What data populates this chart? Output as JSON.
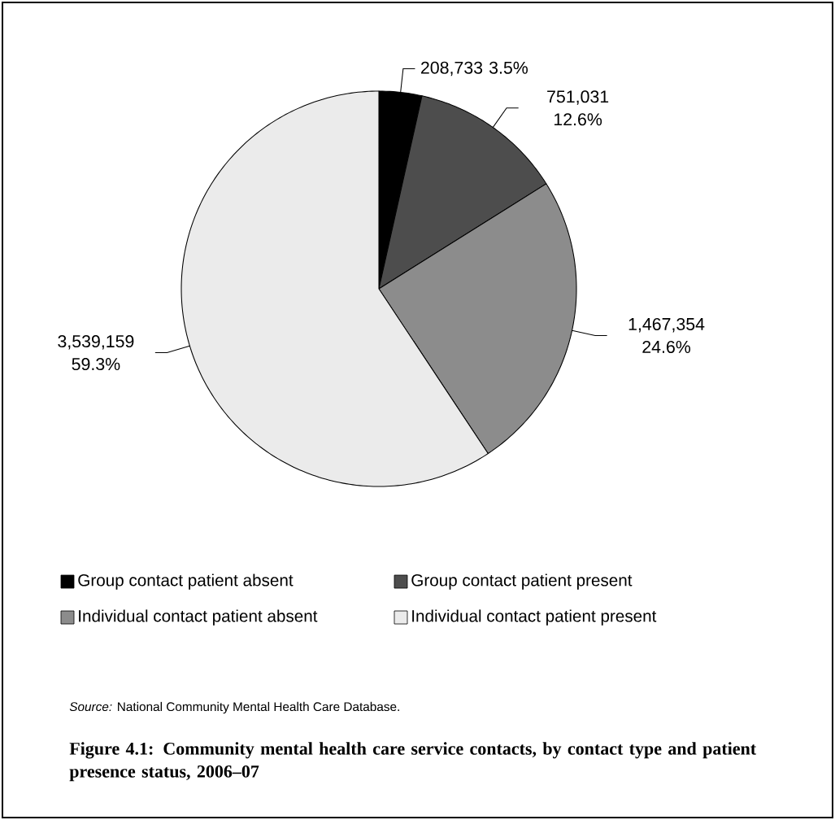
{
  "chart_data": {
    "type": "pie",
    "title": "Figure 4.1: Community mental health care service contacts, by contact type and patient presence status, 2006–07",
    "categories": [
      "Group contact patient absent",
      "Group contact patient present",
      "Individual contact patient absent",
      "Individual contact patient present"
    ],
    "values": [
      208733,
      751031,
      1467354,
      3539159
    ],
    "value_labels": [
      "208,733 3.5%",
      "751,031 12.6%",
      "1,467,354 24.6%",
      "3,539,159 59.3%"
    ],
    "colors": [
      "#000000",
      "#4d4d4d",
      "#8c8c8c",
      "#ebebeb"
    ],
    "legend": "bottom",
    "annotations": [
      "*Source:* National Community Mental Health Care Database."
    ]
  }
}
